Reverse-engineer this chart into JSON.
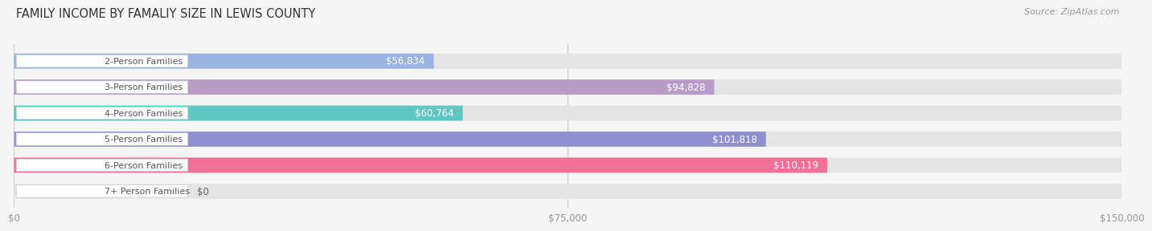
{
  "title": "FAMILY INCOME BY FAMALIY SIZE IN LEWIS COUNTY",
  "source": "Source: ZipAtlas.com",
  "categories": [
    "2-Person Families",
    "3-Person Families",
    "4-Person Families",
    "5-Person Families",
    "6-Person Families",
    "7+ Person Families"
  ],
  "values": [
    56834,
    94828,
    60764,
    101818,
    110119,
    0
  ],
  "bar_colors": [
    "#9ab3e0",
    "#b89cc8",
    "#5ec8c0",
    "#9090d0",
    "#f07098",
    "#f5c89a"
  ],
  "label_values": [
    "$56,834",
    "$94,828",
    "$60,764",
    "$101,818",
    "$110,119",
    "$0"
  ],
  "x_max": 150000,
  "x_ticks": [
    0,
    75000,
    150000
  ],
  "x_tick_labels": [
    "$0",
    "$75,000",
    "$150,000"
  ],
  "bar_height": 0.58,
  "bg_color": "#f5f5f5",
  "bar_bg_color": "#e4e4e4",
  "title_fontsize": 10.5,
  "label_fontsize": 8.5,
  "category_fontsize": 8,
  "source_fontsize": 8
}
